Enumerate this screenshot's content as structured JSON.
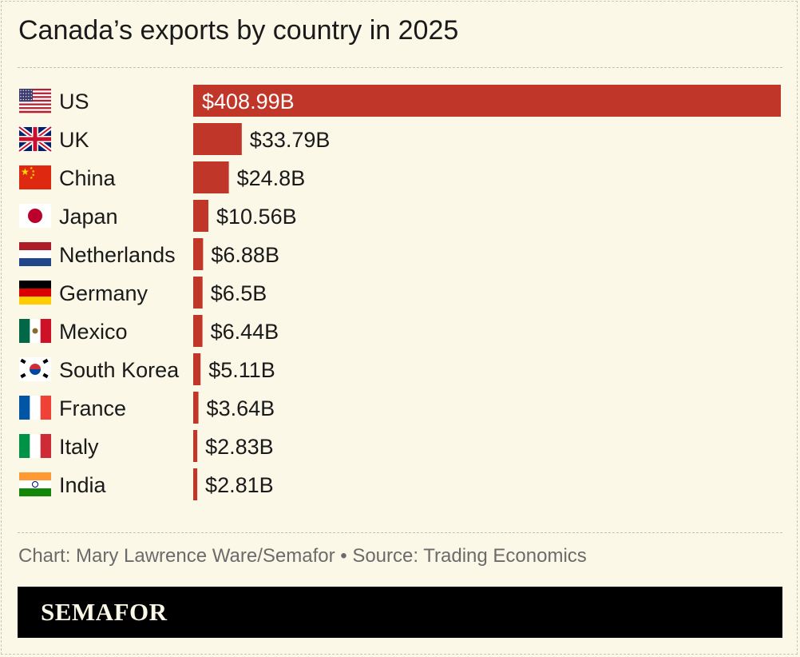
{
  "chart_data": {
    "type": "bar",
    "orientation": "horizontal",
    "title": "Canada’s exports by country in 2025",
    "categories": [
      "US",
      "UK",
      "China",
      "Japan",
      "Netherlands",
      "Germany",
      "Mexico",
      "South Korea",
      "France",
      "Italy",
      "India"
    ],
    "values": [
      408.99,
      33.79,
      24.8,
      10.56,
      6.88,
      6.5,
      6.44,
      5.11,
      3.64,
      2.83,
      2.81
    ],
    "value_labels": [
      "$408.99B",
      "$33.79B",
      "$24.8B",
      "$10.56B",
      "$6.88B",
      "$6.5B",
      "$6.44B",
      "$5.11B",
      "$3.64B",
      "$2.83B",
      "$2.81B"
    ],
    "icons": [
      "flag-us-icon",
      "flag-uk-icon",
      "flag-china-icon",
      "flag-japan-icon",
      "flag-netherlands-icon",
      "flag-germany-icon",
      "flag-mexico-icon",
      "flag-south-korea-icon",
      "flag-france-icon",
      "flag-italy-icon",
      "flag-india-icon"
    ],
    "bar_color": "#c0372a",
    "grid": false,
    "legend": "none"
  },
  "credit": "Chart: Mary Lawrence Ware/Semafor • Source: Trading Economics",
  "brand": "SEMAFOR",
  "colors": {
    "background": "#fbf8e8",
    "footer": "#000000"
  }
}
